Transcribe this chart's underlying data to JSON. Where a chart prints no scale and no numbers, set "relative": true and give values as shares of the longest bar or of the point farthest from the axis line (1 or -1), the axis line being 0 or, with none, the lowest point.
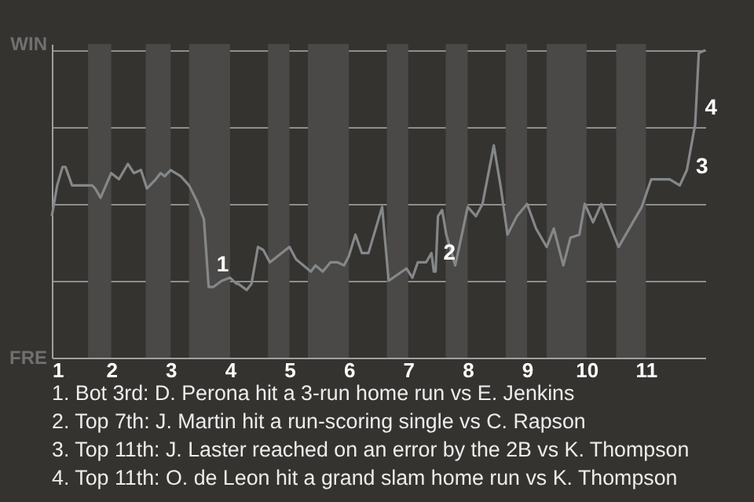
{
  "chart_data": {
    "type": "line",
    "relative": true,
    "x": [
      1,
      1.09,
      1.18,
      1.23,
      1.34,
      1.45,
      1.57,
      1.68,
      1.73,
      1.82,
      1.91,
      2,
      2.13,
      2.28,
      2.38,
      2.5,
      2.6,
      2.75,
      2.83,
      2.9,
      3,
      3.17,
      3.31,
      3.44,
      3.56,
      3.64,
      3.72,
      3.86,
      4,
      4.11,
      4.14,
      4.28,
      4.36,
      4.47,
      4.56,
      4.67,
      5,
      5.11,
      5.36,
      5.44,
      5.56,
      5.69,
      5.81,
      5.92,
      6,
      6.11,
      6.22,
      6.33,
      6.56,
      6.61,
      6.67,
      6.97,
      7.07,
      7.16,
      7.3,
      7.39,
      7.43,
      7.46,
      7.5,
      7.57,
      7.64,
      7.79,
      7.88,
      8,
      8.14,
      8.25,
      8.44,
      8.56,
      8.67,
      8.83,
      9,
      9.15,
      9.33,
      9.45,
      9.61,
      9.73,
      9.88,
      9.97,
      10.11,
      10.25,
      10.54,
      10.93,
      11.09,
      11.4,
      11.57,
      11.69,
      11.83,
      11.89,
      12
    ],
    "series": [
      {
        "color": "#85888a",
        "values": [
          0.46,
          0.56,
          0.62,
          0.62,
          0.56,
          0.56,
          0.56,
          0.56,
          0.55,
          0.52,
          0.56,
          0.6,
          0.58,
          0.63,
          0.6,
          0.61,
          0.55,
          0.58,
          0.6,
          0.59,
          0.61,
          0.59,
          0.56,
          0.51,
          0.45,
          0.23,
          0.23,
          0.25,
          0.26,
          0.24,
          0.24,
          0.22,
          0.24,
          0.36,
          0.35,
          0.31,
          0.36,
          0.32,
          0.28,
          0.3,
          0.28,
          0.31,
          0.31,
          0.3,
          0.33,
          0.4,
          0.34,
          0.34,
          0.49,
          0.38,
          0.25,
          0.29,
          0.26,
          0.31,
          0.31,
          0.34,
          0.28,
          0.28,
          0.46,
          0.48,
          0.4,
          0.3,
          0.38,
          0.49,
          0.46,
          0.5,
          0.69,
          0.55,
          0.4,
          0.46,
          0.5,
          0.42,
          0.36,
          0.42,
          0.3,
          0.39,
          0.4,
          0.5,
          0.44,
          0.5,
          0.36,
          0.49,
          0.58,
          0.58,
          0.56,
          0.61,
          0.76,
          0.99,
          1
        ]
      }
    ],
    "xlim": [
      1,
      12
    ],
    "xticks": [
      1,
      2,
      3,
      4,
      5,
      6,
      7,
      8,
      9,
      10,
      11
    ],
    "grid": "y",
    "bands": [
      {
        "axis": "x",
        "from": 1.61,
        "to": 2,
        "color": "#4a4947"
      },
      {
        "axis": "x",
        "from": 2.58,
        "to": 3,
        "color": "#4a4947"
      },
      {
        "axis": "x",
        "from": 3.31,
        "to": 4,
        "color": "#4a4947"
      },
      {
        "axis": "x",
        "from": 4.64,
        "to": 5,
        "color": "#4a4947"
      },
      {
        "axis": "x",
        "from": 5.31,
        "to": 6,
        "color": "#4a4947"
      },
      {
        "axis": "x",
        "from": 6.64,
        "to": 7,
        "color": "#4a4947"
      },
      {
        "axis": "x",
        "from": 7.63,
        "to": 8,
        "color": "#4a4947"
      },
      {
        "axis": "x",
        "from": 8.64,
        "to": 9,
        "color": "#4a4947"
      },
      {
        "axis": "x",
        "from": 9.33,
        "to": 10,
        "color": "#4a4947"
      },
      {
        "axis": "x",
        "from": 10.5,
        "to": 11,
        "color": "#4a4947"
      }
    ],
    "annotations": [
      "WIN",
      "FRE",
      {
        "text": "1",
        "x": 3.64,
        "y": 0.3
      },
      {
        "text": "2",
        "x": 7.46,
        "y": 0.34
      },
      {
        "text": "3",
        "x": 11.71,
        "y": 0.62
      },
      {
        "text": "4",
        "x": 11.86,
        "y": 0.81
      },
      "1. Bot 3rd: D. Perona hit a 3-run home run vs E. Jenkins",
      "2. Top 7th: J. Martin hit a run-scoring single vs C. Rapson",
      "3. Top 11th: J. Laster reached on an error by the 2B vs K. Thompson",
      "4. Top 11th: O. de Leon hit a grand slam home run vs K. Thompson"
    ]
  }
}
